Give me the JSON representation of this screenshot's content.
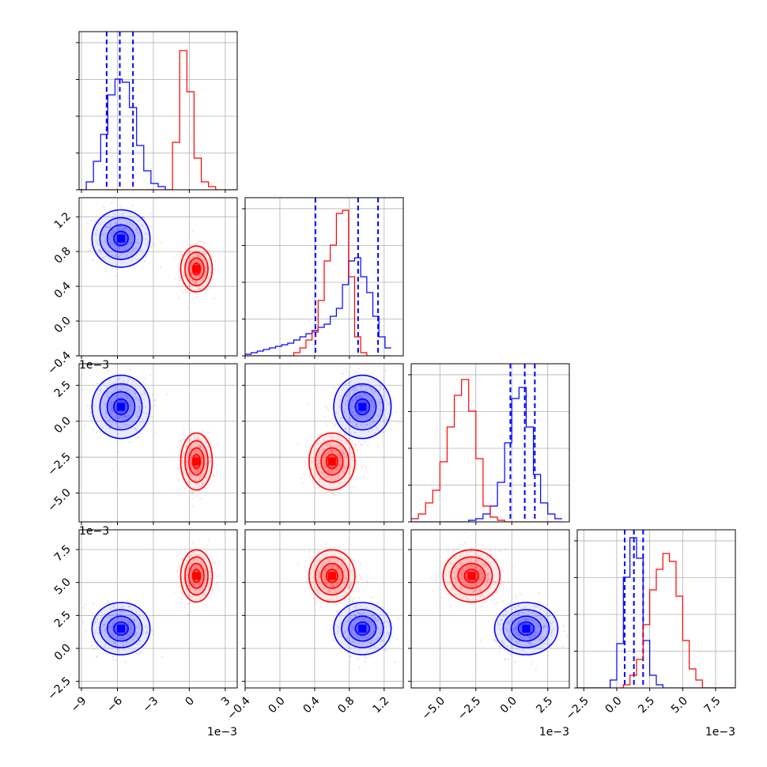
{
  "chart_data": {
    "type": "corner",
    "title": "",
    "grid": true,
    "legend": "none",
    "colors": {
      "posterior_a": "#0000ff",
      "posterior_b": "#ff0000"
    },
    "parameters": [
      {
        "range": [
          -9.2,
          4.0
        ],
        "ticks": [
          -9,
          -6,
          -3,
          0,
          3
        ],
        "tick_labels": [
          "−9",
          "−6",
          "−3",
          "0",
          "3"
        ],
        "offset": "1e−3"
      },
      {
        "range": [
          -0.4,
          1.42
        ],
        "ticks": [
          -0.4,
          0.0,
          0.4,
          0.8,
          1.2
        ],
        "tick_labels": [
          "−0.4",
          "0.0",
          "0.4",
          "0.8",
          "1.2"
        ],
        "offset": ""
      },
      {
        "range": [
          -7.0,
          4.0
        ],
        "ticks": [
          -5,
          -2.5,
          0,
          2.5
        ],
        "tick_labels": [
          "−5.0",
          "−2.5",
          "0.0",
          "2.5"
        ],
        "offset": "1e−3"
      },
      {
        "range": [
          -3.0,
          9.0
        ],
        "ticks": [
          -2.5,
          0,
          2.5,
          5,
          7.5
        ],
        "tick_labels": [
          "−2.5",
          "0.0",
          "2.5",
          "5.0",
          "7.5"
        ],
        "offset": "1e−3"
      }
    ],
    "series": [
      {
        "color": "blue",
        "mean": [
          -5.7,
          0.95,
          1.0,
          1.5
        ],
        "sd": [
          1.1,
          0.15,
          1.0,
          0.9
        ],
        "quantile_lines": [
          [
            -6.9,
            -5.8,
            -4.7
          ],
          [
            0.41,
            0.9,
            1.13
          ],
          [
            -0.1,
            0.9,
            1.6
          ],
          [
            0.6,
            1.3,
            2.0
          ]
        ],
        "histograms": [
          {
            "edges_from": -9.2,
            "bin": 0.6,
            "counts": [
              0.0,
              0.05,
              0.18,
              0.35,
              0.6,
              0.7,
              0.68,
              0.52,
              0.28,
              0.12,
              0.04,
              0.02,
              0.0
            ]
          },
          {
            "edges_from": -0.4,
            "bin": 0.07,
            "counts": [
              0.01,
              0.02,
              0.03,
              0.04,
              0.05,
              0.06,
              0.07,
              0.08,
              0.1,
              0.12,
              0.14,
              0.16,
              0.18,
              0.2,
              0.25,
              0.3,
              0.45,
              0.6,
              0.62,
              0.5,
              0.4,
              0.25,
              0.12,
              0.05
            ]
          },
          {
            "edges_from": -7.0,
            "bin": 0.5,
            "counts": [
              0,
              0,
              0,
              0,
              0,
              0,
              0,
              0,
              0.01,
              0.02,
              0.05,
              0.1,
              0.25,
              0.5,
              0.78,
              0.85,
              0.6,
              0.3,
              0.12,
              0.05,
              0.02
            ]
          },
          {
            "edges_from": -3.0,
            "bin": 0.5,
            "counts": [
              0,
              0,
              0,
              0,
              0,
              0.05,
              0.28,
              0.7,
              0.95,
              0.82,
              0.3,
              0.08,
              0.02,
              0,
              0,
              0,
              0,
              0,
              0,
              0,
              0,
              0,
              0,
              0
            ]
          }
        ]
      },
      {
        "color": "red",
        "mean": [
          0.6,
          0.6,
          -2.8,
          5.5
        ],
        "sd": [
          0.6,
          0.12,
          0.9,
          0.9
        ],
        "quantile_lines": [],
        "histograms": [
          {
            "edges_from": -9.2,
            "bin": 0.6,
            "counts": [
              0,
              0,
              0,
              0,
              0,
              0,
              0,
              0,
              0,
              0,
              0,
              0,
              0,
              0.3,
              0.88,
              0.62,
              0.2,
              0.05,
              0.02,
              0.0,
              0,
              0
            ]
          },
          {
            "edges_from": -0.4,
            "bin": 0.07,
            "counts": [
              0,
              0,
              0,
              0,
              0,
              0,
              0,
              0,
              0.02,
              0.05,
              0.1,
              0.15,
              0.35,
              0.6,
              0.7,
              0.9,
              0.92,
              0.5,
              0.12,
              0.02,
              0.0,
              0,
              0,
              0
            ]
          },
          {
            "edges_from": -7.0,
            "bin": 0.5,
            "counts": [
              0.02,
              0.05,
              0.12,
              0.2,
              0.38,
              0.6,
              0.8,
              0.9,
              0.7,
              0.4,
              0.1,
              0.03,
              0.01,
              0,
              0,
              0,
              0,
              0,
              0,
              0,
              0
            ]
          },
          {
            "edges_from": -3.0,
            "bin": 0.5,
            "counts": [
              0,
              0,
              0,
              0,
              0,
              0,
              0,
              0.02,
              0.08,
              0.18,
              0.4,
              0.62,
              0.75,
              0.85,
              0.8,
              0.58,
              0.3,
              0.12,
              0.05,
              0,
              0,
              0,
              0,
              0
            ]
          }
        ]
      }
    ]
  }
}
